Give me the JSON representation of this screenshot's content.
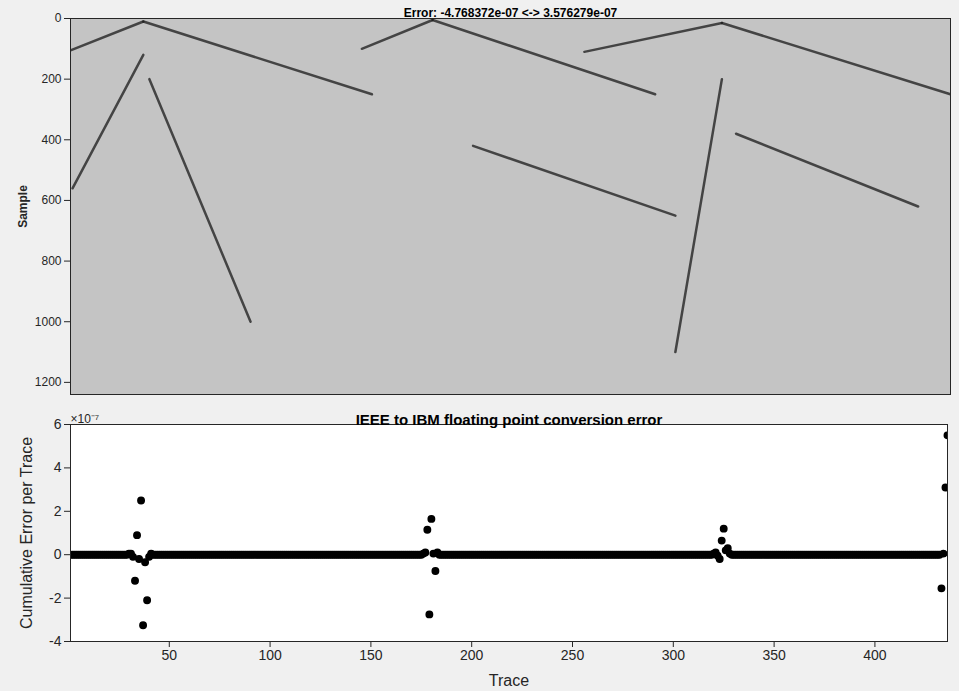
{
  "chart_data": [
    {
      "type": "image",
      "title": "Error: -4.768372e-07 <-> 3.576279e-07",
      "y_label": "Sample",
      "xlim": [
        1,
        436
      ],
      "ylim": [
        0,
        1240
      ],
      "yticks": [
        0,
        200,
        400,
        600,
        800,
        1000,
        1200
      ],
      "tick_labels": "y",
      "color": "#c4c4c4",
      "events": [
        {
          "x": [
            1,
            37
          ],
          "y": [
            105,
            10
          ]
        },
        {
          "x": [
            37,
            150
          ],
          "y": [
            10,
            250
          ]
        },
        {
          "x": [
            37,
            2
          ],
          "y": [
            120,
            560
          ]
        },
        {
          "x": [
            40,
            90
          ],
          "y": [
            200,
            1000
          ]
        },
        {
          "x": [
            145,
            180
          ],
          "y": [
            100,
            5
          ]
        },
        {
          "x": [
            180,
            290
          ],
          "y": [
            5,
            250
          ]
        },
        {
          "x": [
            200,
            300
          ],
          "y": [
            420,
            650
          ]
        },
        {
          "x": [
            255,
            323
          ],
          "y": [
            110,
            15
          ]
        },
        {
          "x": [
            323,
            436
          ],
          "y": [
            15,
            250
          ]
        },
        {
          "x": [
            330,
            420
          ],
          "y": [
            380,
            620
          ]
        },
        {
          "x": [
            323,
            300
          ],
          "y": [
            200,
            1100
          ]
        }
      ]
    },
    {
      "type": "scatter",
      "title": "IEEE to IBM floating point conversion error",
      "x_label": "Trace",
      "y_label": "Cumulative Error per Trace",
      "y_exponent_label": "×10⁻⁷",
      "xlim": [
        1,
        436
      ],
      "xticks": [
        50,
        100,
        150,
        200,
        250,
        300,
        350,
        400
      ],
      "ylim": [
        -4,
        6
      ],
      "yticks": [
        -4,
        -2,
        0,
        2,
        4,
        6
      ],
      "color": "#000000",
      "marker": "circle",
      "grid": false,
      "x": [
        1,
        2,
        3,
        4,
        5,
        6,
        7,
        8,
        9,
        10,
        11,
        12,
        13,
        14,
        15,
        16,
        17,
        18,
        19,
        20,
        21,
        22,
        23,
        24,
        25,
        26,
        27,
        28,
        29,
        30,
        31,
        32,
        33,
        34,
        35,
        36,
        37,
        38,
        39,
        40,
        41,
        42,
        43,
        44,
        45,
        46,
        47,
        48,
        49,
        50,
        51,
        52,
        53,
        54,
        55,
        56,
        57,
        58,
        59,
        60,
        61,
        62,
        63,
        64,
        65,
        66,
        67,
        68,
        69,
        70,
        71,
        72,
        73,
        74,
        75,
        76,
        77,
        78,
        79,
        80,
        81,
        82,
        83,
        84,
        85,
        86,
        87,
        88,
        89,
        90,
        91,
        92,
        93,
        94,
        95,
        96,
        97,
        98,
        99,
        100,
        101,
        102,
        103,
        104,
        105,
        106,
        107,
        108,
        109,
        110,
        111,
        112,
        113,
        114,
        115,
        116,
        117,
        118,
        119,
        120,
        121,
        122,
        123,
        124,
        125,
        126,
        127,
        128,
        129,
        130,
        131,
        132,
        133,
        134,
        135,
        136,
        137,
        138,
        139,
        140,
        141,
        142,
        143,
        144,
        145,
        146,
        147,
        148,
        149,
        150,
        151,
        152,
        153,
        154,
        155,
        156,
        157,
        158,
        159,
        160,
        161,
        162,
        163,
        164,
        165,
        166,
        167,
        168,
        169,
        170,
        171,
        172,
        173,
        174,
        175,
        176,
        177,
        178,
        179,
        180,
        181,
        182,
        183,
        184,
        185,
        186,
        187,
        188,
        189,
        190,
        191,
        192,
        193,
        194,
        195,
        196,
        197,
        198,
        199,
        200,
        201,
        202,
        203,
        204,
        205,
        206,
        207,
        208,
        209,
        210,
        211,
        212,
        213,
        214,
        215,
        216,
        217,
        218,
        219,
        220,
        221,
        222,
        223,
        224,
        225,
        226,
        227,
        228,
        229,
        230,
        231,
        232,
        233,
        234,
        235,
        236,
        237,
        238,
        239,
        240,
        241,
        242,
        243,
        244,
        245,
        246,
        247,
        248,
        249,
        250,
        251,
        252,
        253,
        254,
        255,
        256,
        257,
        258,
        259,
        260,
        261,
        262,
        263,
        264,
        265,
        266,
        267,
        268,
        269,
        270,
        271,
        272,
        273,
        274,
        275,
        276,
        277,
        278,
        279,
        280,
        281,
        282,
        283,
        284,
        285,
        286,
        287,
        288,
        289,
        290,
        291,
        292,
        293,
        294,
        295,
        296,
        297,
        298,
        299,
        300,
        301,
        302,
        303,
        304,
        305,
        306,
        307,
        308,
        309,
        310,
        311,
        312,
        313,
        314,
        315,
        316,
        317,
        318,
        319,
        320,
        321,
        322,
        323,
        324,
        325,
        326,
        327,
        328,
        329,
        330,
        331,
        332,
        333,
        334,
        335,
        336,
        337,
        338,
        339,
        340,
        341,
        342,
        343,
        344,
        345,
        346,
        347,
        348,
        349,
        350,
        351,
        352,
        353,
        354,
        355,
        356,
        357,
        358,
        359,
        360,
        361,
        362,
        363,
        364,
        365,
        366,
        367,
        368,
        369,
        370,
        371,
        372,
        373,
        374,
        375,
        376,
        377,
        378,
        379,
        380,
        381,
        382,
        383,
        384,
        385,
        386,
        387,
        388,
        389,
        390,
        391,
        392,
        393,
        394,
        395,
        396,
        397,
        398,
        399,
        400,
        401,
        402,
        403,
        404,
        405,
        406,
        407,
        408,
        409,
        410,
        411,
        412,
        413,
        414,
        415,
        416,
        417,
        418,
        419,
        420,
        421,
        422,
        423,
        424,
        425,
        426,
        427,
        428,
        429,
        430,
        431,
        432,
        433,
        434,
        435,
        436
      ],
      "values": [
        0,
        0,
        0,
        0,
        0,
        0,
        0,
        0,
        0,
        0,
        0,
        0,
        0,
        0,
        0,
        0,
        0,
        0,
        0,
        0,
        0,
        0,
        0,
        0,
        0,
        0,
        0,
        0,
        0,
        0.05,
        0.05,
        -0.1,
        -1.2,
        0.9,
        -0.2,
        2.5,
        -3.25,
        -0.35,
        -2.1,
        -0.1,
        0.05,
        0,
        0,
        0,
        0,
        0,
        0,
        0,
        0,
        0,
        0,
        0,
        0,
        0,
        0,
        0,
        0,
        0,
        0,
        0,
        0,
        0,
        0,
        0,
        0,
        0,
        0,
        0,
        0,
        0,
        0,
        0,
        0,
        0,
        0,
        0,
        0,
        0,
        0,
        0,
        0,
        0,
        0,
        0,
        0,
        0,
        0,
        0,
        0,
        0,
        0,
        0,
        0,
        0,
        0,
        0,
        0,
        0,
        0,
        0,
        0,
        0,
        0,
        0,
        0,
        0,
        0,
        0,
        0,
        0,
        0,
        0,
        0,
        0,
        0,
        0,
        0,
        0,
        0,
        0,
        0,
        0,
        0,
        0,
        0,
        0,
        0,
        0,
        0,
        0,
        0,
        0,
        0,
        0,
        0,
        0,
        0,
        0,
        0,
        0,
        0,
        0,
        0,
        0,
        0,
        0,
        0,
        0,
        0,
        0,
        0,
        0,
        0,
        0,
        0,
        0,
        0,
        0,
        0,
        0,
        0,
        0,
        0,
        0,
        0,
        0,
        0,
        0,
        0,
        0,
        0,
        0,
        0,
        0,
        0,
        0.05,
        0.1,
        1.15,
        -2.75,
        1.65,
        0.05,
        -0.75,
        0.1,
        0,
        0,
        0,
        0,
        0,
        0,
        0,
        0,
        0,
        0,
        0,
        0,
        0,
        0,
        0,
        0,
        0,
        0,
        0,
        0,
        0,
        0,
        0,
        0,
        0,
        0,
        0,
        0,
        0,
        0,
        0,
        0,
        0,
        0,
        0,
        0,
        0,
        0,
        0,
        0,
        0,
        0,
        0,
        0,
        0,
        0,
        0,
        0,
        0,
        0,
        0,
        0,
        0,
        0,
        0,
        0,
        0,
        0,
        0,
        0,
        0,
        0,
        0,
        0,
        0,
        0,
        0,
        0,
        0,
        0,
        0,
        0,
        0,
        0,
        0,
        0,
        0,
        0,
        0,
        0,
        0,
        0,
        0,
        0,
        0,
        0,
        0,
        0,
        0,
        0,
        0,
        0,
        0,
        0,
        0,
        0,
        0,
        0,
        0,
        0,
        0,
        0,
        0,
        0,
        0,
        0,
        0,
        0,
        0,
        0,
        0,
        0,
        0,
        0,
        0,
        0,
        0,
        0,
        0,
        0,
        0,
        0,
        0,
        0,
        0,
        0,
        0,
        0,
        0,
        0,
        0,
        0,
        0,
        0,
        0,
        0,
        0.05,
        0.1,
        -0.05,
        -0.2,
        0.65,
        1.2,
        0.2,
        0.3,
        0.05,
        0,
        0,
        0,
        0,
        0,
        0,
        0,
        0,
        0,
        0,
        0,
        0,
        0,
        0,
        0,
        0,
        0,
        0,
        0,
        0,
        0,
        0,
        0,
        0,
        0,
        0,
        0,
        0,
        0,
        0,
        0,
        0,
        0,
        0,
        0,
        0,
        0,
        0,
        0,
        0,
        0,
        0,
        0,
        0,
        0,
        0,
        0,
        0,
        0,
        0,
        0,
        0,
        0,
        0,
        0,
        0,
        0,
        0,
        0,
        0,
        0,
        0,
        0,
        0,
        0,
        0,
        0,
        0,
        0,
        0,
        0,
        0,
        0,
        0,
        0,
        0,
        0,
        0,
        0,
        0,
        0,
        0,
        0,
        0,
        0,
        0,
        0,
        0,
        0,
        0,
        0,
        0,
        0,
        0,
        0,
        0,
        0,
        0,
        0,
        0,
        0,
        0,
        0,
        0,
        -1.55,
        0.05,
        3.1,
        5.5
      ]
    }
  ]
}
